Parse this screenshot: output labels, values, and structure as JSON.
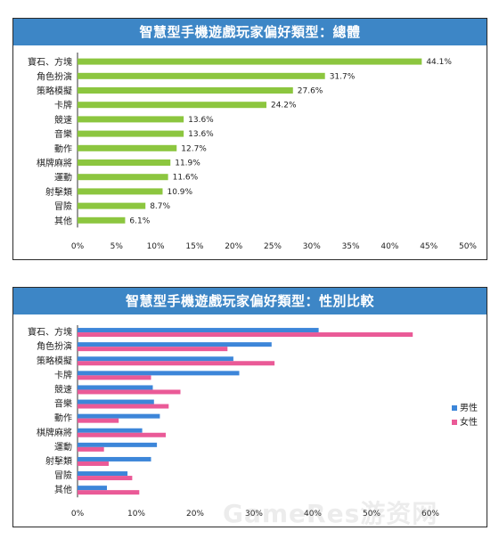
{
  "chart_data": [
    {
      "type": "bar",
      "orientation": "horizontal",
      "title": "智慧型手機遊戲玩家偏好類型：總體",
      "categories": [
        "寶石、方塊",
        "角色扮演",
        "策略模擬",
        "卡牌",
        "競速",
        "音樂",
        "動作",
        "棋牌麻將",
        "運動",
        "射擊類",
        "冒險",
        "其他"
      ],
      "values": [
        44.1,
        31.7,
        27.6,
        24.2,
        13.6,
        13.6,
        12.7,
        11.9,
        11.6,
        10.9,
        8.7,
        6.1
      ],
      "value_labels": [
        "44.1%",
        "31.7%",
        "27.6%",
        "24.2%",
        "13.6%",
        "13.6%",
        "12.7%",
        "11.9%",
        "11.6%",
        "10.9%",
        "8.7%",
        "6.1%"
      ],
      "xlim": [
        0,
        50
      ],
      "xticks": [
        "0%",
        "5%",
        "10%",
        "15%",
        "20%",
        "25%",
        "30%",
        "35%",
        "40%",
        "45%",
        "50%"
      ],
      "color": "#8cc63f",
      "grid": false,
      "legend": "none"
    },
    {
      "type": "bar",
      "orientation": "horizontal",
      "title": "智慧型手機遊戲玩家偏好類型：性別比較",
      "categories": [
        "寶石、方塊",
        "角色扮演",
        "策略模擬",
        "卡牌",
        "競速",
        "音樂",
        "動作",
        "棋牌麻將",
        "運動",
        "射擊類",
        "冒險",
        "其他"
      ],
      "series": [
        {
          "name": "男性",
          "color": "#3d86d9",
          "values": [
            41.0,
            33.0,
            26.5,
            27.5,
            12.8,
            13.0,
            14.0,
            11.0,
            13.5,
            12.5,
            8.5,
            5.0
          ]
        },
        {
          "name": "女性",
          "color": "#ea5a97",
          "values": [
            57.0,
            25.5,
            33.5,
            12.5,
            17.5,
            15.5,
            7.0,
            15.0,
            4.5,
            5.3,
            9.3,
            10.5
          ]
        }
      ],
      "xlim": [
        0,
        60
      ],
      "xticks": [
        "0%",
        "10%",
        "20%",
        "30%",
        "40%",
        "50%",
        "60%"
      ],
      "grid": false,
      "legend": "right"
    }
  ],
  "watermark": "GameRes游资网"
}
